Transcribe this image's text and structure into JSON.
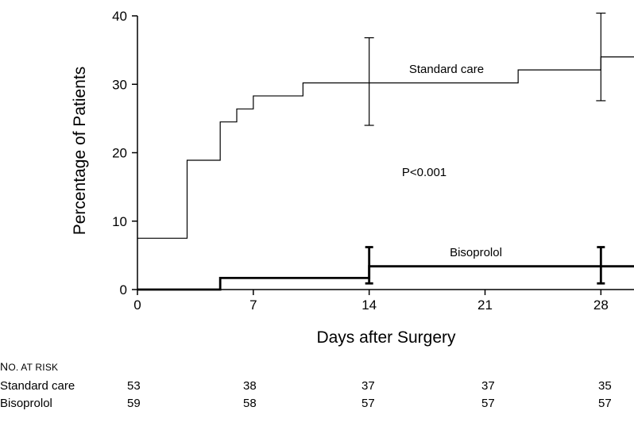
{
  "chart_data": {
    "type": "line",
    "step": true,
    "xlabel": "Days after Surgery",
    "ylabel": "Percentage of Patients",
    "xlim": [
      0,
      30
    ],
    "ylim": [
      0,
      40
    ],
    "xticks": [
      0,
      7,
      14,
      21,
      28
    ],
    "yticks": [
      0,
      10,
      20,
      30,
      40
    ],
    "grid": false,
    "series": [
      {
        "name": "Standard care",
        "color": "#000000",
        "x": [
          0,
          3,
          5,
          6,
          7,
          10,
          14,
          23,
          28,
          30
        ],
        "y": [
          7.5,
          18.9,
          24.5,
          26.4,
          28.3,
          30.2,
          30.2,
          32.1,
          34.0,
          34.0
        ],
        "error_bars": [
          {
            "x": 14,
            "low": 24.0,
            "high": 36.8
          },
          {
            "x": 28,
            "low": 27.6,
            "high": 40.4
          }
        ]
      },
      {
        "name": "Bisoprolol",
        "color": "#000000",
        "x": [
          0,
          5,
          14,
          30
        ],
        "y": [
          0,
          1.7,
          3.4,
          3.4
        ],
        "error_bars": [
          {
            "x": 14,
            "low": 0.9,
            "high": 6.2
          },
          {
            "x": 28,
            "low": 0.9,
            "high": 6.2
          }
        ]
      }
    ],
    "annotations": [
      "P<0.001"
    ]
  },
  "risk_table": {
    "title": "No. at Risk",
    "rows": [
      {
        "label": "Standard care",
        "values": [
          "53",
          "38",
          "37",
          "37",
          "35"
        ]
      },
      {
        "label": "Bisoprolol",
        "values": [
          "59",
          "58",
          "57",
          "57",
          "57"
        ]
      }
    ]
  }
}
